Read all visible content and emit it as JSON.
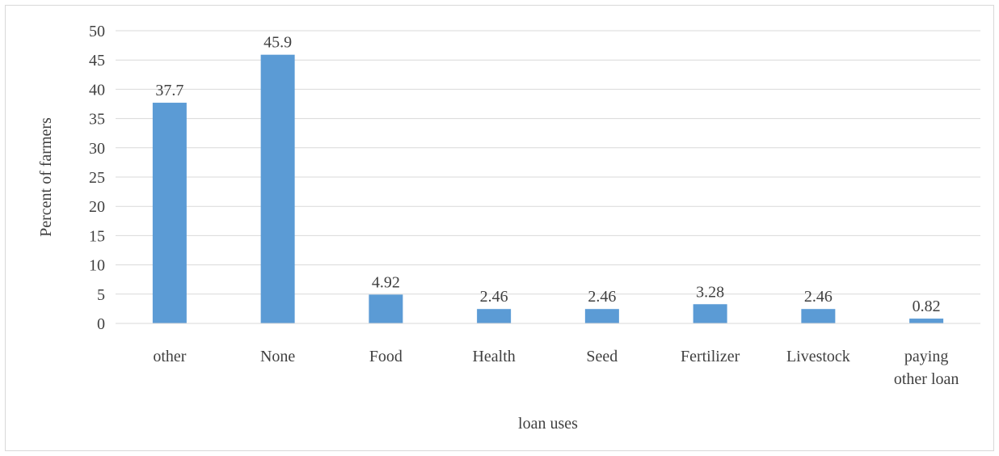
{
  "chart_data": {
    "type": "bar",
    "title": "",
    "xlabel": "loan uses",
    "ylabel": "Percent of farmers",
    "ylim": [
      0,
      50
    ],
    "yticks": [
      0,
      5,
      10,
      15,
      20,
      25,
      30,
      35,
      40,
      45,
      50
    ],
    "grid": true,
    "legend": "none",
    "bar_color": "#5b9bd5",
    "categories": [
      [
        "other"
      ],
      [
        "None"
      ],
      [
        "Food"
      ],
      [
        "Health"
      ],
      [
        "Seed"
      ],
      [
        "Fertilizer"
      ],
      [
        "Livestock"
      ],
      [
        "paying",
        "other loan"
      ]
    ],
    "values": [
      37.7,
      45.9,
      4.92,
      2.46,
      2.46,
      3.28,
      2.46,
      0.82
    ],
    "value_labels": [
      "37.7",
      "45.9",
      "4.92",
      "2.46",
      "2.46",
      "3.28",
      "2.46",
      "0.82"
    ]
  }
}
